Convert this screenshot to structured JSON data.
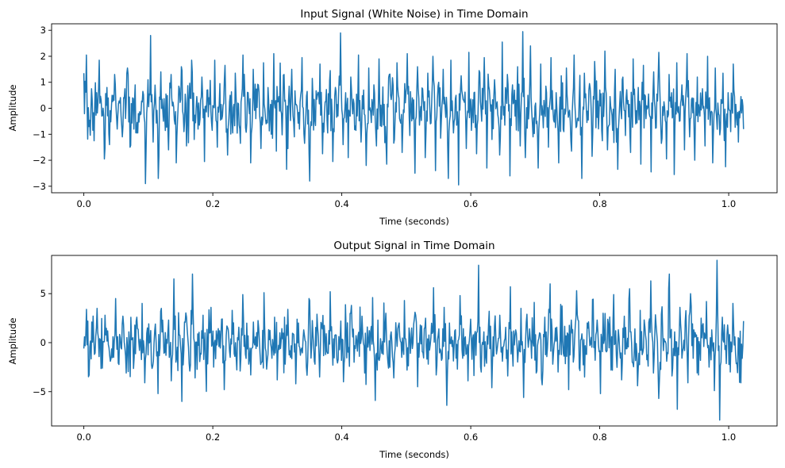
{
  "chart_data": [
    {
      "type": "line",
      "title": "Input Signal (White Noise) in Time Domain",
      "xlabel": "Time (seconds)",
      "ylabel": "Amplitude",
      "xlim": [
        -0.05,
        1.075
      ],
      "ylim": [
        -3.25,
        3.25
      ],
      "xticks": [
        0.0,
        0.2,
        0.4,
        0.6,
        0.8,
        1.0
      ],
      "xtick_labels": [
        "0.0",
        "0.2",
        "0.4",
        "0.6",
        "0.8",
        "1.0"
      ],
      "yticks": [
        -3,
        -2,
        -1,
        0,
        1,
        2,
        3
      ],
      "ytick_labels": [
        "−3",
        "−2",
        "−1",
        "0",
        "1",
        "2",
        "3"
      ],
      "grid": false,
      "color": "#1f77b4",
      "series": [
        {
          "x_start": 0.0,
          "x_end": 1.023,
          "envelope_scale": 1.0,
          "values": [
            1.35,
            2.05,
            -0.7,
            0.75,
            -1.25,
            0.6,
            1.85,
            -0.3,
            -1.95,
            0.8,
            -1.4,
            0.5,
            1.3,
            -0.8,
            0.2,
            -1.1,
            0.75,
            1.55,
            -1.5,
            0.4,
            0.9,
            -0.95,
            -0.25,
            0.65,
            -2.9,
            1.1,
            2.8,
            -1.3,
            0.3,
            -2.7,
            1.4,
            -0.5,
            0.55,
            -1.6,
            1.3,
            0.05,
            -2.1,
            0.85,
            1.6,
            -0.9,
            -1.45,
            0.35,
            1.85,
            -1.2,
            0.45,
            -0.65,
            1.2,
            -2.05,
            0.7,
            0.15,
            -0.85,
            1.85,
            -1.5,
            0.95,
            -0.3,
            1.65,
            -1.8,
            0.5,
            -0.95,
            1.35,
            0.2,
            -1.35,
            2.05,
            -0.75,
            0.6,
            -2.1,
            1.5,
            -0.4,
            0.9,
            -1.55,
            1.75,
            -0.6,
            0.3,
            -1.0,
            2.1,
            -1.65,
            0.45,
            -0.2,
            1.3,
            -2.35,
            0.85,
            1.5,
            -1.1,
            0.1,
            -0.8,
            1.95,
            -1.35,
            0.65,
            -2.8,
            1.15,
            -0.45,
            0.5,
            1.7,
            -1.75,
            0.25,
            -0.95,
            1.45,
            -2.05,
            0.8,
            -0.3,
            2.9,
            -1.4,
            0.6,
            -1.9,
            1.2,
            0.35,
            -0.85,
            2.05,
            -1.3,
            0.7,
            -2.2,
            1.55,
            -0.55,
            0.9,
            -1.45,
            1.9,
            -0.7,
            0.15,
            -2.15,
            1.3,
            0.55,
            -1.2,
            1.75,
            -0.4,
            -1.7,
            0.95,
            2.1,
            -1.05,
            0.4,
            -2.5,
            1.6,
            -0.25,
            0.75,
            -1.9,
            1.35,
            -0.6,
            2.0,
            -2.4,
            0.85,
            -1.15,
            1.5,
            -0.35,
            -2.7,
            1.85,
            -0.95,
            0.5,
            -2.95,
            1.25,
            0.3,
            -1.55,
            2.15,
            -0.85,
            0.6,
            -1.75,
            1.45,
            -0.5,
            1.95,
            -2.3,
            0.7,
            -1.2,
            1.1,
            0.25,
            -1.8,
            2.55,
            -0.65,
            1.3,
            -2.6,
            0.9,
            -0.3,
            1.6,
            -1.45,
            2.95,
            -1.9,
            0.5,
            2.4,
            -1.1,
            0.2,
            -2.3,
            1.7,
            -0.75,
            0.85,
            -1.5,
            1.95,
            -0.45,
            0.6,
            -2.1,
            1.25,
            -0.9,
            1.55,
            -0.2,
            -1.65,
            2.05,
            -0.7,
            0.4,
            -2.7,
            1.35,
            -0.55,
            0.95,
            -1.85,
            1.8,
            -0.35,
            0.7,
            -1.25,
            2.2,
            -1.6,
            0.45,
            -0.85,
            1.5,
            -2.35,
            0.65,
            1.2,
            -1.05,
            0.3,
            -1.7,
            1.9,
            -0.6,
            0.8,
            -2.15,
            1.65,
            -0.4,
            0.55,
            -2.45,
            1.4,
            -0.75,
            2.15,
            -1.35,
            0.25,
            -1.95,
            1.3,
            0.6,
            -2.55,
            1.75,
            -0.5,
            0.9,
            -1.6,
            2.1,
            -1.1,
            0.4,
            -2.0,
            1.2,
            -0.3,
            0.75,
            -1.45,
            2.0,
            -0.65,
            -2.1,
            1.55,
            0.2,
            -0.8,
            1.35,
            -2.25,
            0.6,
            -0.9,
            1.7,
            0.15,
            -1.3,
            0.45,
            -0.8
          ]
        }
      ]
    },
    {
      "type": "line",
      "title": "Output Signal in Time Domain",
      "xlabel": "Time (seconds)",
      "ylabel": "Amplitude",
      "xlim": [
        -0.05,
        1.075
      ],
      "ylim": [
        -8.5,
        8.9
      ],
      "xticks": [
        0.0,
        0.2,
        0.4,
        0.6,
        0.8,
        1.0
      ],
      "xtick_labels": [
        "0.0",
        "0.2",
        "0.4",
        "0.6",
        "0.8",
        "1.0"
      ],
      "yticks": [
        -5,
        0,
        5
      ],
      "ytick_labels": [
        "−5",
        "0",
        "5"
      ],
      "grid": false,
      "color": "#1f77b4",
      "series": [
        {
          "x_start": 0.0,
          "x_end": 1.023,
          "envelope_scale": 2.6,
          "values": [
            -0.6,
            3.4,
            -3.3,
            2.1,
            -1.2,
            3.5,
            0.4,
            -2.6,
            2.8,
            1.2,
            -1.9,
            0.6,
            4.5,
            -2.1,
            -0.5,
            1.8,
            -3.1,
            1.1,
            0.3,
            -1.5,
            2.6,
            -0.8,
            4.0,
            -4.1,
            1.5,
            0.2,
            -2.4,
            1.9,
            -5.2,
            3.2,
            0.6,
            -1.3,
            2.3,
            -3.9,
            6.5,
            -1.6,
            0.8,
            -6.0,
            2.1,
            1.4,
            -2.9,
            7.0,
            -3.6,
            0.9,
            -1.1,
            2.8,
            -2.2,
            0.4,
            3.6,
            -2.5,
            1.2,
            -0.4,
            2.4,
            -4.8,
            1.7,
            -0.9,
            3.3,
            -1.4,
            0.5,
            -2.9,
            4.9,
            -1.2,
            0.7,
            -3.3,
            2.1,
            -0.6,
            1.5,
            -2.0,
            5.1,
            -2.7,
            0.3,
            -1.6,
            2.6,
            -3.8,
            1.0,
            0.4,
            -2.2,
            3.4,
            -1.5,
            0.9,
            -4.2,
            2.0,
            -0.7,
            1.3,
            -2.5,
            4.5,
            -0.3,
            -1.9,
            2.9,
            -3.5,
            1.4,
            0.6,
            -1.1,
            5.2,
            -2.3,
            0.8,
            -1.7,
            2.2,
            -4.0,
            1.2,
            -0.5,
            3.8,
            -2.0,
            0.2,
            -1.4,
            2.7,
            -3.1,
            1.6,
            -0.8,
            4.6,
            -5.9,
            2.3,
            0.4,
            -1.2,
            3.0,
            -2.6,
            1.1,
            -3.6,
            0.7,
            2.0,
            -1.5,
            4.3,
            -2.8,
            0.9,
            -0.6,
            3.1,
            -4.5,
            1.8,
            -1.0,
            2.5,
            -2.2,
            0.5,
            5.6,
            -3.3,
            1.4,
            -1.8,
            3.6,
            -6.4,
            2.0,
            -0.4,
            1.2,
            -2.7,
            4.8,
            -1.6,
            0.6,
            -3.9,
            2.4,
            0.8,
            -1.3,
            7.9,
            -3.0,
            1.1,
            -2.1,
            3.2,
            -4.6,
            1.7,
            -0.7,
            2.8,
            -1.9,
            0.4,
            -3.4,
            5.7,
            -2.4,
            1.3,
            -0.9,
            3.5,
            -5.6,
            2.1,
            0.3,
            -1.6,
            4.1,
            -2.9,
            1.0,
            -4.3,
            2.6,
            -0.5,
            6.0,
            -2.2,
            1.5,
            -3.0,
            3.9,
            -1.1,
            0.7,
            -4.8,
            2.3,
            -1.4,
            5.3,
            -2.6,
            0.9,
            -3.5,
            2.0,
            -0.3,
            4.4,
            -1.8,
            1.2,
            -5.2,
            3.0,
            -0.8,
            1.9,
            -2.8,
            4.9,
            -1.3,
            0.5,
            -3.8,
            2.7,
            -0.6,
            5.5,
            -2.0,
            1.4,
            -4.4,
            3.3,
            -1.0,
            0.8,
            -2.4,
            6.3,
            -3.1,
            1.8,
            -5.7,
            2.9,
            0.4,
            -1.9,
            7.0,
            -3.4,
            1.1,
            -6.8,
            3.6,
            -0.9,
            2.2,
            -4.1,
            5.0,
            -1.6,
            0.6,
            -3.3,
            2.5,
            -0.4,
            4.2,
            -2.5,
            1.3,
            -4.9,
            8.4,
            -7.9,
            2.6,
            -0.7,
            1.8,
            -3.0,
            4.0,
            -1.2,
            0.5,
            -4.1,
            2.2
          ]
        }
      ]
    }
  ]
}
